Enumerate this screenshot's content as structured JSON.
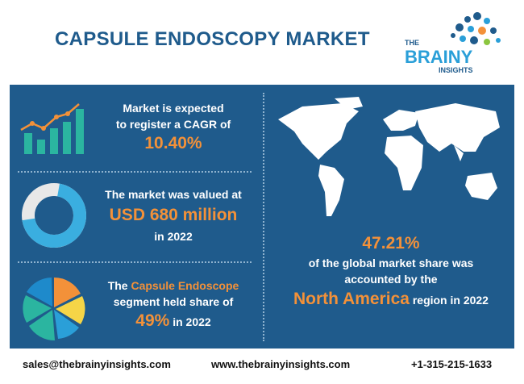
{
  "header": {
    "title": "CAPSULE ENDOSCOPY MARKET",
    "logo": {
      "top": "THE",
      "middle": "BRAINY",
      "bottom": "INSIGHTS"
    }
  },
  "stats": [
    {
      "lines": [
        "Market is expected",
        "to register a CAGR of"
      ],
      "highlight": "10.40%"
    },
    {
      "line1": "The market was valued at",
      "highlight": "USD 680 million",
      "line3": "in 2022"
    },
    {
      "prefix": "The",
      "segment": "Capsule Endoscope",
      "line2": "segment held share of",
      "highlight": "49%",
      "suffix": "in 2022"
    }
  ],
  "region": {
    "highlight": "47.21%",
    "line1": "of the global market share was",
    "line2": "accounted by the",
    "name": "North America",
    "suffix": "region in 2022"
  },
  "footer": {
    "email": "sales@thebrainyinsights.com",
    "website": "www.thebrainyinsights.com",
    "phone": "+1-315-215-1633"
  }
}
